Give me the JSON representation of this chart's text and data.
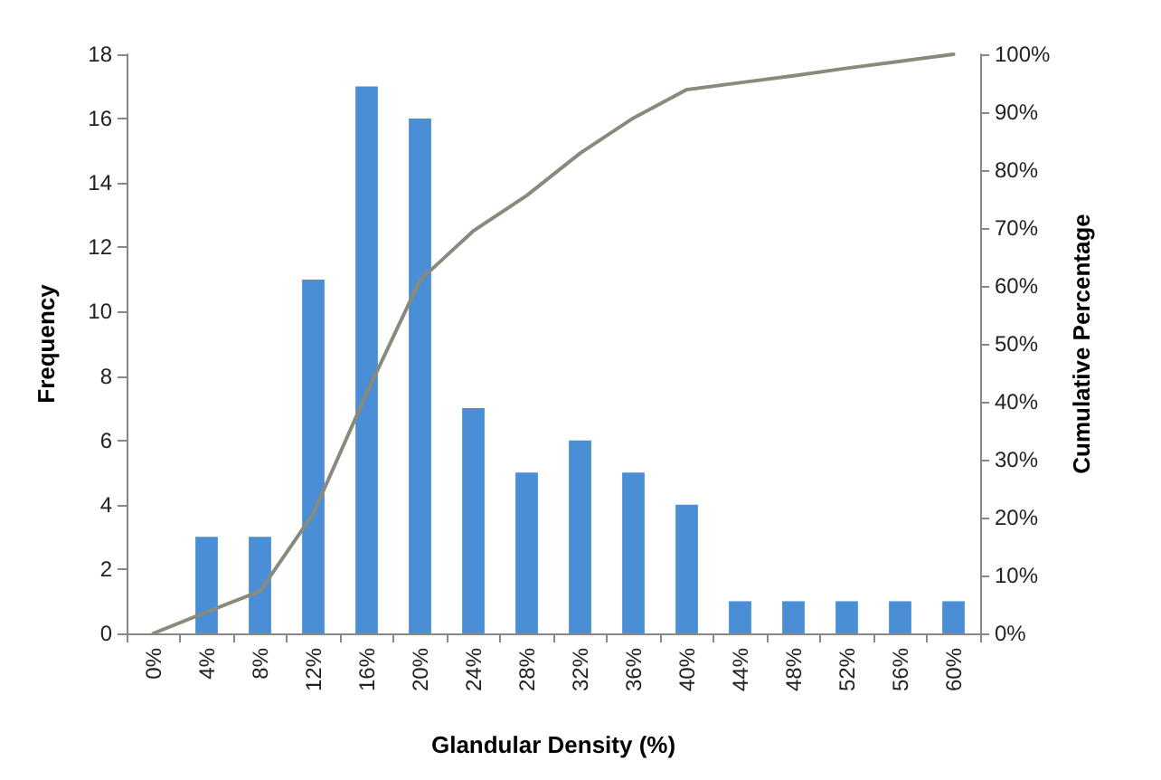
{
  "chart_data": {
    "type": "bar",
    "xlabel": "Glandular Density (%)",
    "ylabel": "Frequency",
    "y2label": "Cumulative Percentage",
    "categories": [
      "0%",
      "4%",
      "8%",
      "12%",
      "16%",
      "20%",
      "24%",
      "28%",
      "32%",
      "36%",
      "40%",
      "44%",
      "48%",
      "52%",
      "56%",
      "60%"
    ],
    "series": [
      {
        "color": "#4a8fd6",
        "values": [
          0,
          3,
          3,
          11,
          17,
          16,
          7,
          5,
          6,
          5,
          4,
          1,
          1,
          1,
          1,
          1
        ]
      },
      {
        "type": "line",
        "axis": "y2",
        "color": "#8a8a7c",
        "values": [
          0,
          3.7,
          7.3,
          20.7,
          41.5,
          61.0,
          69.5,
          75.6,
          82.9,
          89.0,
          93.9,
          95.1,
          96.3,
          97.6,
          98.8,
          100
        ]
      }
    ],
    "ylim": [
      0,
      18
    ],
    "yticks": [
      0,
      2,
      4,
      6,
      8,
      10,
      12,
      14,
      16,
      18
    ],
    "y2lim": [
      0,
      100
    ],
    "y2ticks": [
      {
        "value": 0,
        "label": "0%"
      },
      {
        "value": 10,
        "label": "10%"
      },
      {
        "value": 20,
        "label": "20%"
      },
      {
        "value": 30,
        "label": "30%"
      },
      {
        "value": 40,
        "label": "40%"
      },
      {
        "value": 50,
        "label": "50%"
      },
      {
        "value": 60,
        "label": "60%"
      },
      {
        "value": 70,
        "label": "70%"
      },
      {
        "value": 80,
        "label": "80%"
      },
      {
        "value": 90,
        "label": "90%"
      },
      {
        "value": 100,
        "label": "100%"
      }
    ],
    "grid": false,
    "marker": "none"
  }
}
